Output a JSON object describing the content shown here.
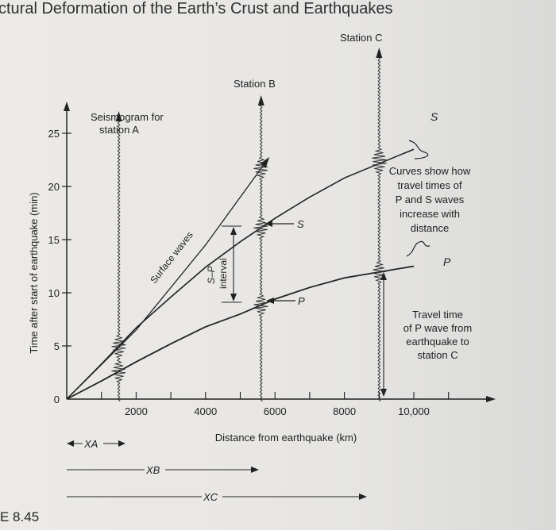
{
  "page": {
    "running_head": "ctural Deformation of the Earth’s Crust and Earthquakes",
    "figure_label": "E 8.45"
  },
  "figure": {
    "ylabel": "Time after start of earthquake (min)",
    "xlabel": "Distance from earthquake (km)",
    "xticks": [
      "2000",
      "4000",
      "6000",
      "8000",
      "10,000"
    ],
    "yticks": [
      "0",
      "5",
      "10",
      "15",
      "20",
      "25"
    ],
    "station_a_label_1": "Seismogram for",
    "station_a_label_2": "station A",
    "station_b_label": "Station B",
    "station_c_label": "Station C",
    "surface_waves_label": "Surface waves",
    "sp_label": "S–P",
    "interval_label": "interval",
    "s_marker": "S",
    "p_marker": "P",
    "s_curve_label": "S",
    "p_curve_label": "P",
    "curves_note": [
      "Curves show how",
      "travel times of",
      "P and S waves",
      "increase with",
      "distance"
    ],
    "travel_note": [
      "Travel time",
      "of P wave from",
      "earthquake to",
      "station C"
    ],
    "xa_label": "XA",
    "xb_label": "XB",
    "xc_label": "XC"
  },
  "chart_data": {
    "type": "line",
    "xlabel": "Distance from earthquake (km)",
    "ylabel": "Time after start of earthquake (min)",
    "xlim": [
      0,
      12000
    ],
    "ylim": [
      0,
      27
    ],
    "series": [
      {
        "name": "S",
        "x": [
          0,
          1000,
          2000,
          3000,
          4000,
          5000,
          6000,
          7000,
          8000,
          10000
        ],
        "values": [
          0,
          3.3,
          6.7,
          9.6,
          12.4,
          14.8,
          17.0,
          19.0,
          20.8,
          23.5
        ]
      },
      {
        "name": "P",
        "x": [
          0,
          1000,
          2000,
          3000,
          4000,
          5000,
          6000,
          7000,
          8000,
          10000
        ],
        "values": [
          0,
          1.7,
          3.5,
          5.2,
          6.8,
          8.0,
          9.4,
          10.5,
          11.4,
          12.5
        ]
      },
      {
        "name": "Surface waves",
        "x": [
          0,
          2000,
          4000,
          5800
        ],
        "values": [
          0,
          6.5,
          14.5,
          22.6
        ]
      }
    ],
    "stations": [
      {
        "name": "A",
        "distance_km": 1500
      },
      {
        "name": "B",
        "distance_km": 5600
      },
      {
        "name": "C",
        "distance_km": 9000
      }
    ]
  }
}
